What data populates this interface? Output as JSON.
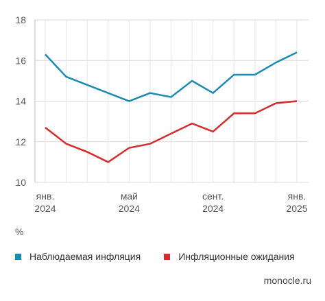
{
  "chart_data": {
    "type": "line",
    "ylim": [
      10,
      18
    ],
    "yticks": [
      10,
      12,
      14,
      16,
      18
    ],
    "x": [
      "2024-01",
      "2024-02",
      "2024-03",
      "2024-04",
      "2024-05",
      "2024-06",
      "2024-07",
      "2024-08",
      "2024-09",
      "2024-10",
      "2024-11",
      "2024-12",
      "2025-01"
    ],
    "xtick_labels": [
      {
        "line1": "янв.",
        "line2": "2024"
      },
      {
        "line1": "май",
        "line2": "2024"
      },
      {
        "line1": "сент.",
        "line2": "2024"
      },
      {
        "line1": "янв.",
        "line2": "2025"
      }
    ],
    "unit": "%",
    "grid": true,
    "legend_position": "bottom",
    "series": [
      {
        "name": "Наблюдаемая инфляция",
        "color": "#1a8bb3",
        "values": [
          16.3,
          15.2,
          14.8,
          14.4,
          14.0,
          14.4,
          14.2,
          15.0,
          14.4,
          15.3,
          15.3,
          15.9,
          16.4
        ]
      },
      {
        "name": "Инфляционные ожидания",
        "color": "#d42b2b",
        "values": [
          12.7,
          11.9,
          11.5,
          11.0,
          11.7,
          11.9,
          12.4,
          12.9,
          12.5,
          13.4,
          13.4,
          13.9,
          14.0
        ]
      }
    ]
  },
  "source": "monocle.ru"
}
